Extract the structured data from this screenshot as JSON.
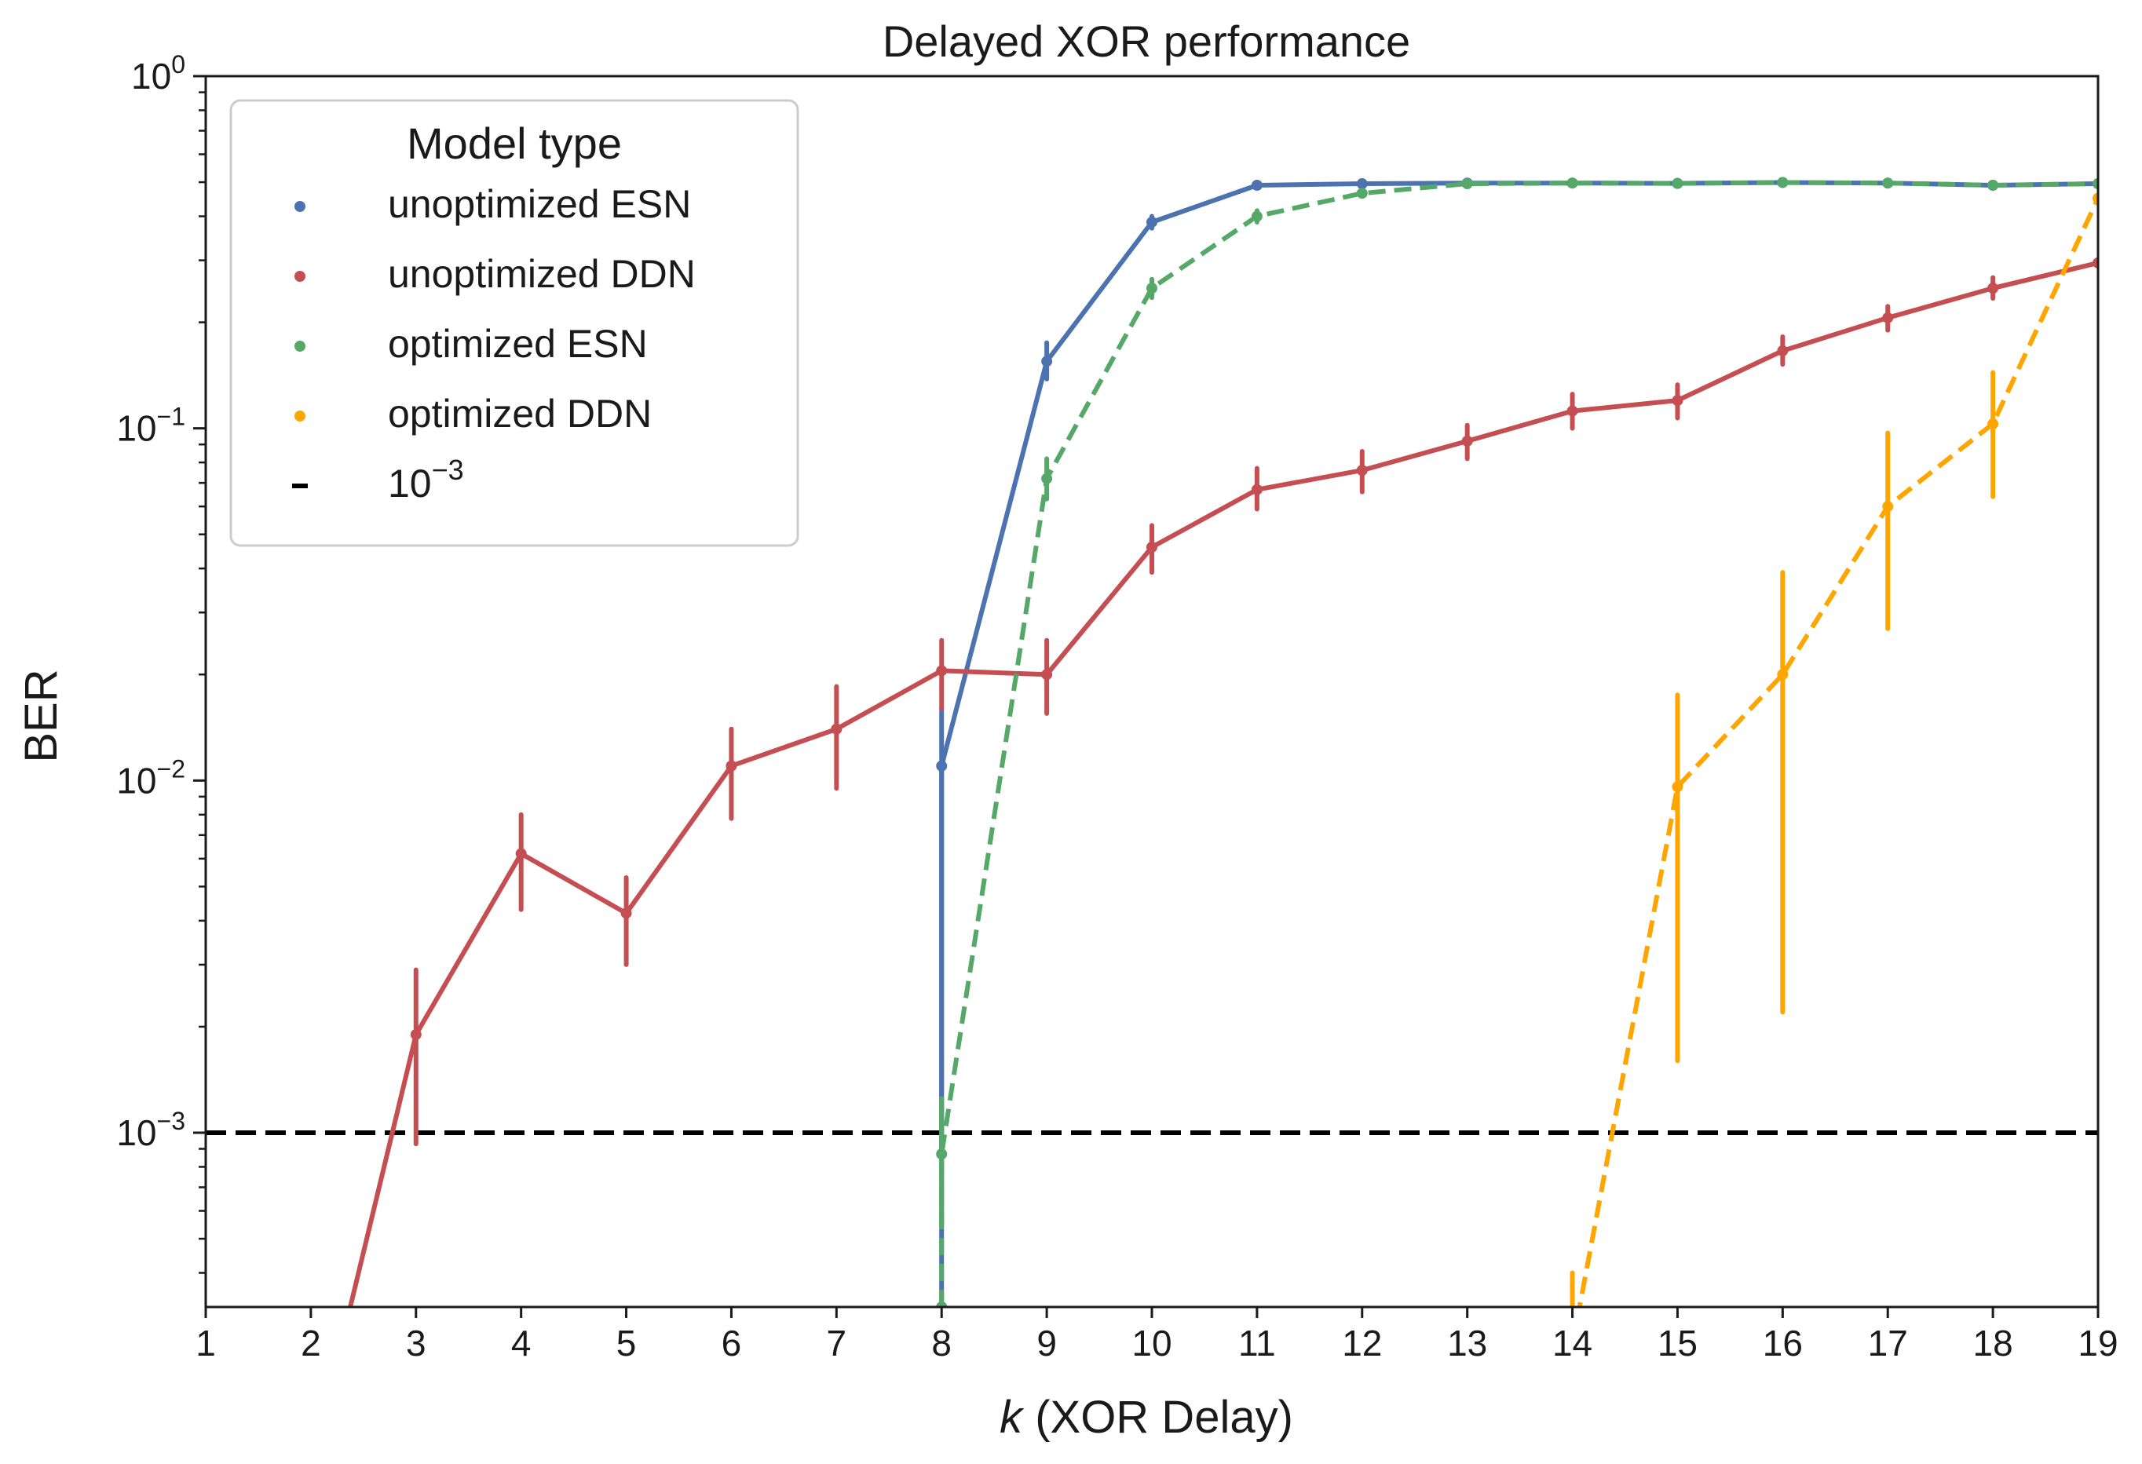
{
  "chart_data": {
    "type": "line",
    "title": "Delayed XOR performance",
    "xlabel_italic": "k",
    "xlabel_rest": " (XOR Delay)",
    "ylabel": "BER",
    "yscale": "log",
    "xlim": [
      1,
      19
    ],
    "ylim": [
      0.00032,
      1.0
    ],
    "x_ticks": [
      1,
      2,
      3,
      4,
      5,
      6,
      7,
      8,
      9,
      10,
      11,
      12,
      13,
      14,
      15,
      16,
      17,
      18,
      19
    ],
    "y_ticks": [
      {
        "value": 0.001,
        "base": "10",
        "exp": "−3"
      },
      {
        "value": 0.01,
        "base": "10",
        "exp": "−2"
      },
      {
        "value": 0.1,
        "base": "10",
        "exp": "−1"
      },
      {
        "value": 1.0,
        "base": "10",
        "exp": "0"
      }
    ],
    "reference_line": {
      "value": 0.001,
      "style": "dashed",
      "color": "#000000",
      "label": "10",
      "label_exp": "−3"
    },
    "legend": {
      "title": "Model type",
      "location": "upper-left",
      "entries": [
        {
          "label": "unoptimized ESN",
          "color": "#4c72b0"
        },
        {
          "label": "unoptimized DDN",
          "color": "#c44e52"
        },
        {
          "label": "optimized ESN",
          "color": "#55a868"
        },
        {
          "label": "optimized DDN",
          "color": "#ffa500"
        }
      ]
    },
    "series": [
      {
        "name": "unoptimized ESN",
        "color": "#4c72b0",
        "dashed": false,
        "x": [
          8,
          8,
          9,
          10,
          11,
          12,
          13,
          14,
          15,
          16,
          17,
          18,
          19
        ],
        "y": [
          0.00032,
          0.011,
          0.155,
          0.385,
          0.49,
          0.495,
          0.497,
          0.497,
          0.496,
          0.499,
          0.497,
          0.49,
          0.495
        ],
        "err_low": [
          null,
          0.0009,
          0.138,
          0.37,
          null,
          null,
          null,
          null,
          null,
          null,
          null,
          null,
          null
        ],
        "err_high": [
          null,
          0.016,
          0.175,
          0.4,
          null,
          null,
          null,
          null,
          null,
          null,
          null,
          null,
          null
        ]
      },
      {
        "name": "unoptimized DDN",
        "color": "#c44e52",
        "dashed": false,
        "x": [
          2,
          3,
          4,
          5,
          6,
          7,
          8,
          9,
          10,
          11,
          12,
          13,
          14,
          15,
          16,
          17,
          18,
          19
        ],
        "y": [
          0.00011,
          0.0019,
          0.0062,
          0.0042,
          0.011,
          0.014,
          0.0205,
          0.02,
          0.046,
          0.067,
          0.076,
          0.092,
          0.112,
          0.12,
          0.166,
          0.206,
          0.25,
          0.295
        ],
        "err_low": [
          null,
          0.00093,
          0.0043,
          0.003,
          0.0078,
          0.0095,
          0.016,
          0.0155,
          0.039,
          0.059,
          0.066,
          0.082,
          0.1,
          0.107,
          0.152,
          0.19,
          0.234,
          null
        ],
        "err_high": [
          null,
          0.0029,
          0.008,
          0.0053,
          0.014,
          0.0185,
          0.025,
          0.025,
          0.053,
          0.077,
          0.086,
          0.102,
          0.125,
          0.133,
          0.182,
          0.222,
          0.268,
          null
        ]
      },
      {
        "name": "optimized ESN",
        "color": "#55a868",
        "dashed": true,
        "x": [
          8,
          8,
          9,
          10,
          11,
          12,
          13,
          14,
          15,
          16,
          17,
          18,
          19
        ],
        "y": [
          0.00032,
          0.00087,
          0.072,
          0.25,
          0.4,
          0.465,
          0.495,
          0.497,
          0.496,
          0.499,
          0.497,
          0.49,
          0.495
        ],
        "err_low": [
          null,
          0.00055,
          0.063,
          0.235,
          0.385,
          null,
          null,
          null,
          null,
          null,
          null,
          null,
          null
        ],
        "err_high": [
          null,
          0.00125,
          0.082,
          0.265,
          0.415,
          null,
          null,
          null,
          null,
          null,
          null,
          null,
          null
        ]
      },
      {
        "name": "optimized DDN",
        "color": "#ffa500",
        "dashed": true,
        "x": [
          14,
          15,
          16,
          17,
          18,
          19
        ],
        "y": [
          0.00025,
          0.0096,
          0.02,
          0.06,
          0.103,
          0.45
        ],
        "err_low": [
          0.00032,
          0.0016,
          0.0022,
          0.027,
          0.064,
          null
        ],
        "err_high": [
          0.0004,
          0.0175,
          0.039,
          0.097,
          0.144,
          null
        ]
      }
    ]
  }
}
